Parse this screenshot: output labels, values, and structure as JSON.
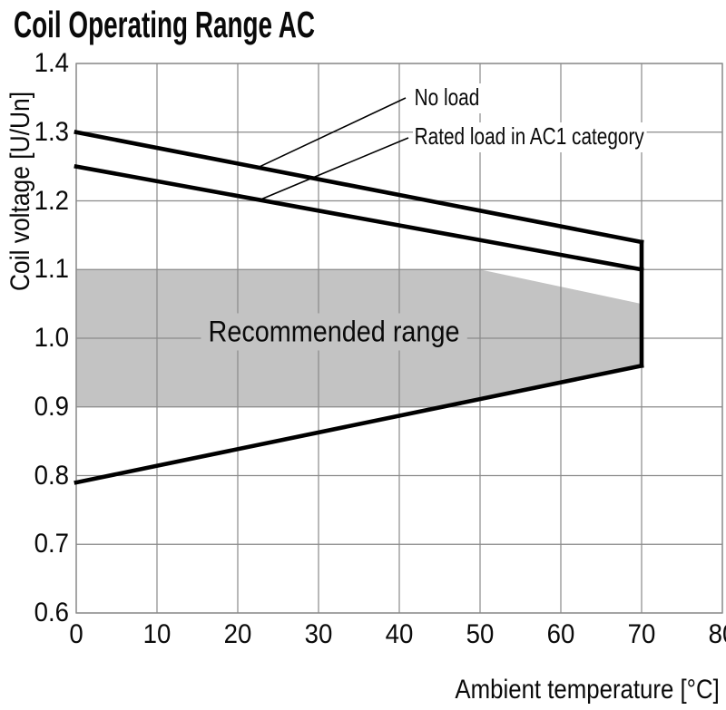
{
  "title": "Coil Operating Range AC",
  "chart_data": {
    "type": "line",
    "title": "Coil Operating Range AC",
    "xlabel": "Ambient temperature [°C]",
    "ylabel": "Coil voltage [U/Un]",
    "xlim": [
      0,
      80
    ],
    "ylim": [
      0.6,
      1.4
    ],
    "grid": true,
    "legend_position": "none (leader-line annotations inside plot)",
    "xticks": {
      "values": [
        0,
        10,
        20,
        30,
        40,
        50,
        60,
        70,
        80
      ],
      "labels": [
        "0",
        "10",
        "20",
        "30",
        "40",
        "50",
        "60",
        "70",
        "80"
      ]
    },
    "yticks": {
      "values": [
        1.4,
        1.3,
        1.2,
        1.1,
        1.0,
        0.9,
        0.8,
        0.7,
        0.6
      ],
      "labels": [
        "1.4",
        "1.3",
        "1.2",
        "1.1",
        "1.0",
        "0.9",
        "0.8",
        "0.7",
        "0.6"
      ]
    },
    "series": [
      {
        "name": "No load",
        "points": [
          [
            0,
            1.3
          ],
          [
            70,
            1.14
          ]
        ]
      },
      {
        "name": "Rated load in AC1 category",
        "points": [
          [
            0,
            1.25
          ],
          [
            70,
            1.1
          ]
        ]
      },
      {
        "name": "lower-limit-line",
        "points": [
          [
            0,
            0.79
          ],
          [
            70,
            0.96
          ]
        ]
      },
      {
        "name": "right-boundary-70C",
        "points": [
          [
            70,
            1.14
          ],
          [
            70,
            0.96
          ]
        ]
      }
    ],
    "region": {
      "label": "Recommended range",
      "polygon": [
        [
          0,
          1.1
        ],
        [
          50,
          1.1
        ],
        [
          70,
          1.05
        ],
        [
          70,
          0.96
        ],
        [
          45.3,
          0.9
        ],
        [
          0,
          0.9
        ]
      ],
      "fill": "#c3c3c3"
    },
    "annotations": [
      {
        "label": "No load"
      },
      {
        "label": "Rated load in AC1 category"
      }
    ]
  },
  "colors": {
    "line": "#000000",
    "grid": "#8a8a8a",
    "region_fill": "#c3c3c3",
    "text": "#0a0a0a",
    "background": "#ffffff"
  }
}
